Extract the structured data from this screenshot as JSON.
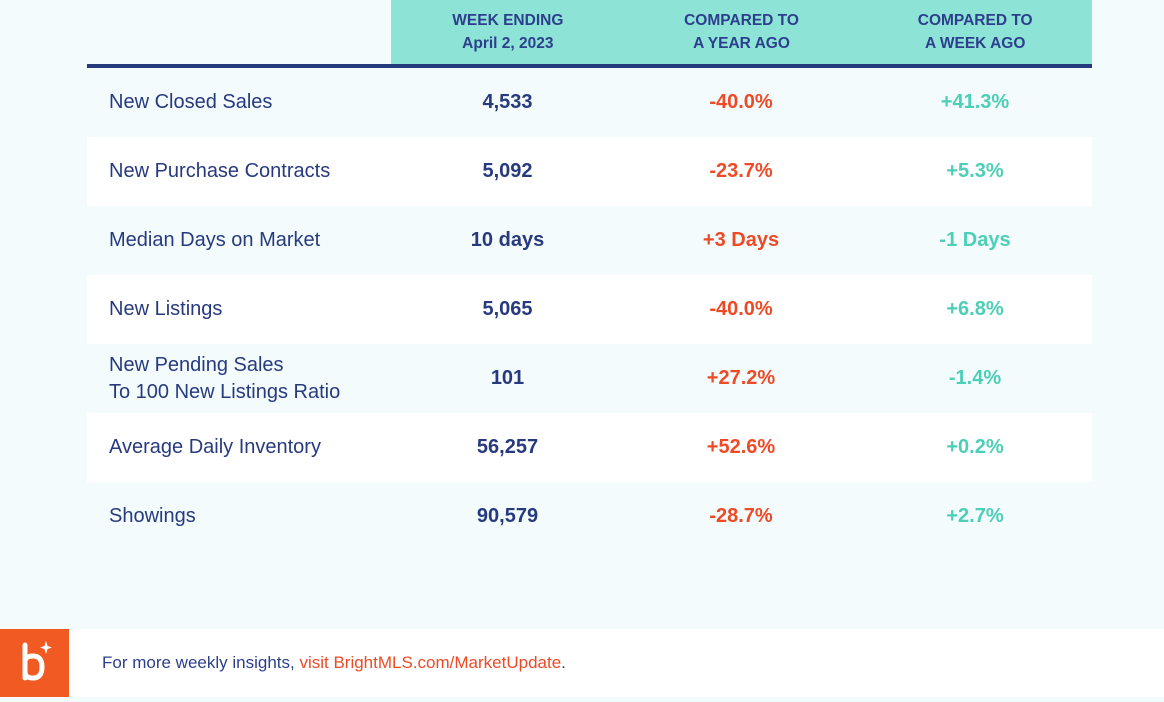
{
  "header": {
    "col1": [
      "WEEK ENDING",
      "April 2, 2023"
    ],
    "col2": [
      "COMPARED TO",
      "A YEAR AGO"
    ],
    "col3": [
      "COMPARED TO",
      "A WEEK AGO"
    ]
  },
  "rows": [
    {
      "label": [
        "New Closed Sales"
      ],
      "value": "4,533",
      "year": "-40.0%",
      "week": "+41.3%"
    },
    {
      "label": [
        "New Purchase Contracts"
      ],
      "value": "5,092",
      "year": "-23.7%",
      "week": "+5.3%"
    },
    {
      "label": [
        "Median Days on Market"
      ],
      "value": "10 days",
      "year": "+3 Days",
      "week": "-1 Days"
    },
    {
      "label": [
        "New Listings"
      ],
      "value": "5,065",
      "year": "-40.0%",
      "week": "+6.8%"
    },
    {
      "label": [
        "New Pending Sales",
        "To 100 New Listings Ratio"
      ],
      "value": "101",
      "year": "+27.2%",
      "week": "-1.4%"
    },
    {
      "label": [
        "Average Daily Inventory"
      ],
      "value": "56,257",
      "year": "+52.6%",
      "week": "+0.2%"
    },
    {
      "label": [
        "Showings"
      ],
      "value": "90,579",
      "year": "-28.7%",
      "week": "+2.7%"
    }
  ],
  "footer": {
    "text": "For more weekly insights, ",
    "link": "visit BrightMLS.com/MarketUpdate",
    "end": ".",
    "logo_icon": "bright-mls-logo-icon"
  },
  "colors": {
    "header_bg": "#8de3d6",
    "navy": "#273a7e",
    "negative": "#ee4a25",
    "positive": "#4ccfb6",
    "logo": "#f15a22"
  }
}
